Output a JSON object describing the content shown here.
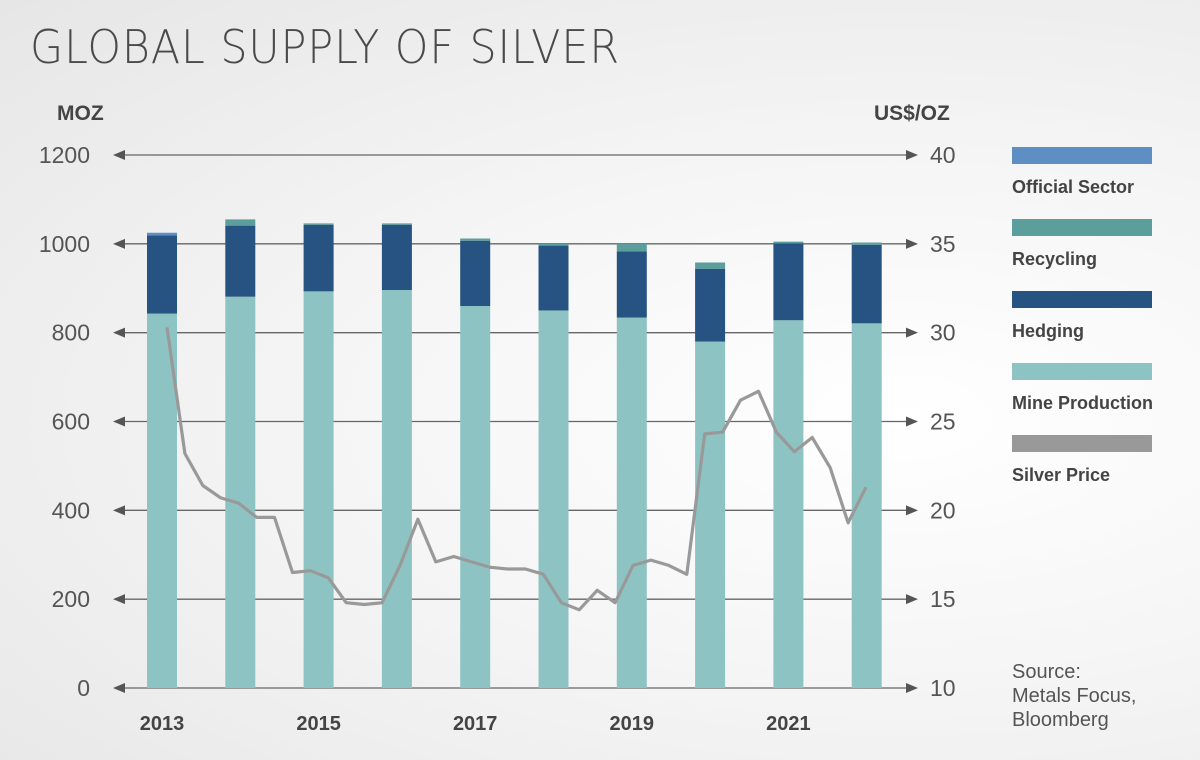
{
  "chart_data": {
    "type": "bar+line",
    "title": "GLOBAL SUPPLY OF SILVER",
    "ylabel_left": "MOZ",
    "ylabel_right": "US$/OZ",
    "ylim_left": [
      0,
      1200
    ],
    "ylim_right": [
      10,
      40
    ],
    "yticks_left": [
      "0",
      "200",
      "400",
      "600",
      "800",
      "1000",
      "1200"
    ],
    "yticks_right": [
      "10",
      "15",
      "20",
      "25",
      "30",
      "35",
      "40"
    ],
    "categories": [
      "2013",
      "2014",
      "2015",
      "2016",
      "2017",
      "2018",
      "2019",
      "2020",
      "2021",
      "2022"
    ],
    "xtick_labels": [
      "2013",
      "2015",
      "2017",
      "2019",
      "2021"
    ],
    "stacked": true,
    "series": [
      {
        "name": "Mine Production",
        "color": "#8dc4c3",
        "values": [
          843,
          881,
          893,
          896,
          860,
          850,
          834,
          780,
          828,
          821
        ]
      },
      {
        "name": "Hedging",
        "color": "#265381",
        "values": [
          176,
          160,
          150,
          147,
          147,
          146,
          149,
          164,
          173,
          177
        ]
      },
      {
        "name": "Recycling",
        "color": "#5b9e9c",
        "values": [
          0,
          14,
          3,
          3,
          5,
          4,
          17,
          14,
          4,
          5
        ]
      },
      {
        "name": "Official Sector",
        "color": "#5e8fc4",
        "values": [
          6,
          0,
          0,
          0,
          0,
          0,
          0,
          0,
          0,
          0
        ]
      }
    ],
    "line_series": {
      "name": "Silver Price",
      "color": "#999999",
      "axis": "right",
      "frequency": "quarterly, 2013 Q1 – 2022 Q4",
      "values": [
        30.3,
        23.2,
        21.4,
        20.7,
        20.4,
        19.6,
        19.6,
        16.5,
        16.6,
        16.2,
        14.8,
        14.7,
        14.8,
        16.9,
        19.5,
        17.1,
        17.4,
        17.1,
        16.8,
        16.7,
        16.7,
        16.4,
        14.8,
        14.4,
        15.5,
        14.8,
        16.9,
        17.2,
        16.9,
        16.4,
        24.3,
        24.4,
        26.2,
        26.7,
        24.4,
        23.3,
        24.1,
        22.4,
        19.3,
        21.3
      ]
    },
    "legend_position": "right",
    "grid": true
  },
  "source": {
    "line1": "Source:",
    "line2": "Metals Focus,",
    "line3": "Bloomberg"
  }
}
